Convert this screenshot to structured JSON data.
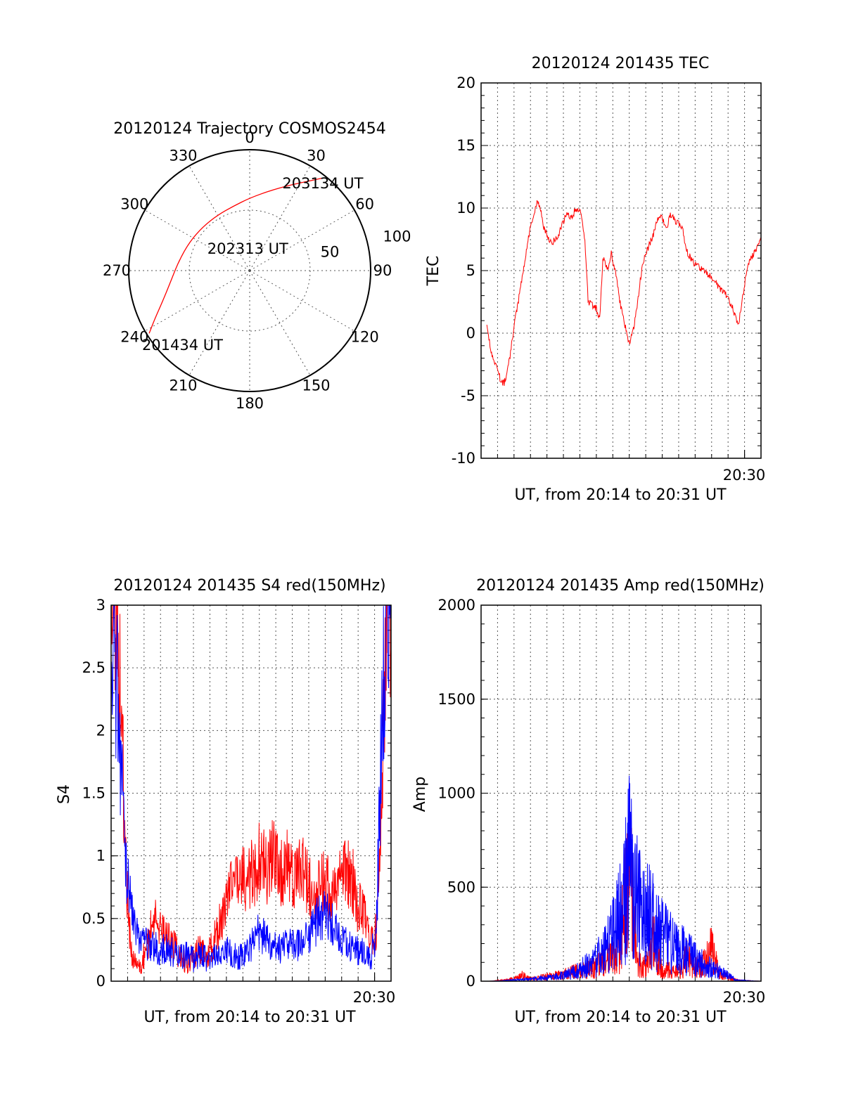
{
  "colors": {
    "red": "#ff0000",
    "blue": "#0000ff",
    "axis": "#000000",
    "grid": "#555555"
  },
  "chart_data": [
    {
      "type": "polar",
      "title": "20120124 Trajectory COSMOS2454",
      "angle_labels": [
        "0",
        "30",
        "60",
        "90",
        "120",
        "150",
        "180",
        "210",
        "240",
        "270",
        "300",
        "330"
      ],
      "radial_labels": [
        "50",
        "100"
      ],
      "radial_range": [
        0,
        100
      ],
      "grid": true,
      "series": [
        {
          "color": "red",
          "points": [
            {
              "azimuth": 238,
              "radius": 98
            },
            {
              "azimuth": 243,
              "radius": 88
            },
            {
              "azimuth": 250,
              "radius": 77
            },
            {
              "azimuth": 262,
              "radius": 66
            },
            {
              "azimuth": 278,
              "radius": 59
            },
            {
              "azimuth": 296,
              "radius": 55
            },
            {
              "azimuth": 313,
              "radius": 53
            },
            {
              "azimuth": 330,
              "radius": 53
            },
            {
              "azimuth": 346,
              "radius": 55
            },
            {
              "azimuth": 0,
              "radius": 60
            },
            {
              "azimuth": 14,
              "radius": 68
            },
            {
              "azimuth": 25,
              "radius": 78
            },
            {
              "azimuth": 33,
              "radius": 88
            },
            {
              "azimuth": 38,
              "radius": 97
            }
          ]
        }
      ],
      "annotations": [
        {
          "text": "203134 UT",
          "azimuth": 40,
          "radius": 94
        },
        {
          "text": "202313 UT",
          "azimuth": 355,
          "radius": 18
        },
        {
          "text": "201434 UT",
          "azimuth": 222,
          "radius": 83
        }
      ]
    },
    {
      "type": "line",
      "title": "20120124 201435 TEC",
      "xlabel": "UT, from 20:14 to 20:31 UT",
      "ylabel": "TEC",
      "xlim": [
        0,
        17
      ],
      "ylim": [
        -10,
        20
      ],
      "yticks": [
        "-10",
        "-5",
        "0",
        "5",
        "10",
        "15",
        "20"
      ],
      "xtick_label": "20:30",
      "grid": true,
      "series": [
        {
          "color": "red",
          "x": [
            0.35,
            0.5,
            0.6,
            1.0,
            1.25,
            1.4,
            1.6,
            1.8,
            2.0,
            2.5,
            3.0,
            3.4,
            3.6,
            3.8,
            4.2,
            4.6,
            4.9,
            5.2,
            5.5,
            5.7,
            6.0,
            6.3,
            6.5,
            7.0,
            7.2,
            7.4,
            7.7,
            7.9,
            8.2,
            8.5,
            9.0,
            9.3,
            9.8,
            10.2,
            10.5,
            10.8,
            11.3,
            11.5,
            11.8,
            12.2,
            12.5,
            13.0,
            13.5,
            14.0,
            14.5,
            14.9,
            15.3,
            15.6,
            15.9,
            16.2,
            16.6,
            17.0
          ],
          "y": [
            0.5,
            -0.5,
            -1.5,
            -3.0,
            -4.0,
            -4.0,
            -3.0,
            -1.5,
            0.5,
            4.5,
            8.5,
            10.5,
            10.0,
            8.5,
            7.2,
            7.5,
            8.6,
            9.5,
            9.2,
            9.8,
            10.0,
            7.5,
            2.5,
            2.0,
            1.0,
            6.0,
            5.0,
            6.5,
            4.5,
            2.0,
            -0.8,
            0.5,
            5.5,
            7.0,
            8.0,
            9.5,
            8.5,
            9.5,
            9.0,
            8.5,
            6.5,
            5.5,
            5.0,
            4.5,
            3.5,
            3.0,
            2.0,
            0.5,
            3.0,
            5.5,
            6.5,
            7.5
          ]
        }
      ]
    },
    {
      "type": "line",
      "title": "20120124 201435 S4 red(150MHz)",
      "xlabel": "UT, from 20:14 to 20:31 UT",
      "ylabel": "S4",
      "xlim": [
        0,
        17
      ],
      "ylim": [
        0,
        3
      ],
      "yticks": [
        "0",
        "0.5",
        "1",
        "1.5",
        "2",
        "2.5",
        "3"
      ],
      "xtick_label": "20:30",
      "grid": true,
      "series": [
        {
          "color": "red",
          "x": [
            0.0,
            0.3,
            0.6,
            0.9,
            1.1,
            1.3,
            1.5,
            1.8,
            2.2,
            2.6,
            3.0,
            3.4,
            3.8,
            4.2,
            4.6,
            5.0,
            5.4,
            5.8,
            6.2,
            6.6,
            7.0,
            7.4,
            7.8,
            8.2,
            8.6,
            9.0,
            9.4,
            9.8,
            10.2,
            10.6,
            11.0,
            11.4,
            11.8,
            12.2,
            12.6,
            13.0,
            13.4,
            13.8,
            14.2,
            14.6,
            15.0,
            15.4,
            15.8,
            16.1,
            16.4,
            16.7,
            17.0
          ],
          "y": [
            3.0,
            2.9,
            2.2,
            0.9,
            0.4,
            0.18,
            0.12,
            0.12,
            0.3,
            0.5,
            0.45,
            0.35,
            0.3,
            0.2,
            0.15,
            0.2,
            0.25,
            0.2,
            0.3,
            0.45,
            0.6,
            0.75,
            0.85,
            0.8,
            0.85,
            0.95,
            0.9,
            1.0,
            0.85,
            0.95,
            0.8,
            0.9,
            0.85,
            0.7,
            0.75,
            0.8,
            0.7,
            0.75,
            0.9,
            0.85,
            0.6,
            0.5,
            0.3,
            0.4,
            1.5,
            2.8,
            3.0
          ]
        },
        {
          "color": "blue",
          "x": [
            0.0,
            0.3,
            0.6,
            0.9,
            1.1,
            1.3,
            1.5,
            1.8,
            2.2,
            2.6,
            3.0,
            3.4,
            3.8,
            4.2,
            4.6,
            5.0,
            5.4,
            5.8,
            6.2,
            6.6,
            7.0,
            7.4,
            7.8,
            8.2,
            8.6,
            9.0,
            9.4,
            9.8,
            10.2,
            10.6,
            11.0,
            11.4,
            11.8,
            12.2,
            12.6,
            13.0,
            13.4,
            13.8,
            14.2,
            14.6,
            15.0,
            15.4,
            15.8,
            16.1,
            16.4,
            16.7,
            17.0
          ],
          "y": [
            2.8,
            2.4,
            1.8,
            1.0,
            0.7,
            0.5,
            0.4,
            0.35,
            0.3,
            0.28,
            0.25,
            0.25,
            0.22,
            0.2,
            0.2,
            0.18,
            0.2,
            0.18,
            0.2,
            0.22,
            0.25,
            0.22,
            0.2,
            0.25,
            0.3,
            0.4,
            0.35,
            0.3,
            0.25,
            0.28,
            0.3,
            0.3,
            0.35,
            0.4,
            0.5,
            0.55,
            0.45,
            0.35,
            0.3,
            0.28,
            0.25,
            0.22,
            0.2,
            0.4,
            1.8,
            2.9,
            3.0
          ]
        }
      ]
    },
    {
      "type": "line",
      "title": "20120124 201435 Amp red(150MHz)",
      "xlabel": "UT, from 20:14 to 20:31 UT",
      "ylabel": "Amp",
      "xlim": [
        0,
        17
      ],
      "ylim": [
        0,
        2000
      ],
      "yticks": [
        "0",
        "500",
        "1000",
        "1500",
        "2000"
      ],
      "xtick_label": "20:30",
      "grid": true,
      "series": [
        {
          "color": "red",
          "x": [
            0.5,
            1.5,
            2.0,
            2.5,
            3.0,
            3.5,
            4.0,
            4.5,
            5.0,
            5.5,
            6.0,
            6.5,
            7.0,
            7.5,
            8.0,
            8.5,
            9.0,
            9.5,
            10.0,
            10.5,
            11.0,
            11.5,
            12.0,
            12.5,
            13.0,
            13.5,
            14.0,
            14.5,
            15.0,
            15.5,
            16.0,
            17.0
          ],
          "y": [
            0,
            10,
            25,
            50,
            20,
            30,
            40,
            50,
            60,
            80,
            90,
            110,
            130,
            180,
            200,
            400,
            1000,
            150,
            120,
            350,
            100,
            90,
            80,
            200,
            120,
            150,
            280,
            60,
            40,
            10,
            5,
            0
          ]
        },
        {
          "color": "blue",
          "x": [
            0.5,
            1.5,
            2.0,
            2.5,
            3.0,
            3.5,
            4.0,
            4.5,
            5.0,
            5.5,
            6.0,
            6.5,
            7.0,
            7.5,
            8.0,
            8.5,
            9.0,
            9.5,
            10.0,
            10.5,
            11.0,
            11.5,
            12.0,
            12.5,
            13.0,
            13.5,
            14.0,
            14.5,
            15.0,
            15.5,
            16.0,
            17.0
          ],
          "y": [
            0,
            5,
            10,
            15,
            20,
            25,
            30,
            40,
            50,
            70,
            100,
            150,
            200,
            300,
            400,
            600,
            1020,
            700,
            600,
            520,
            400,
            350,
            300,
            250,
            200,
            150,
            120,
            80,
            50,
            10,
            5,
            0
          ]
        }
      ]
    }
  ]
}
